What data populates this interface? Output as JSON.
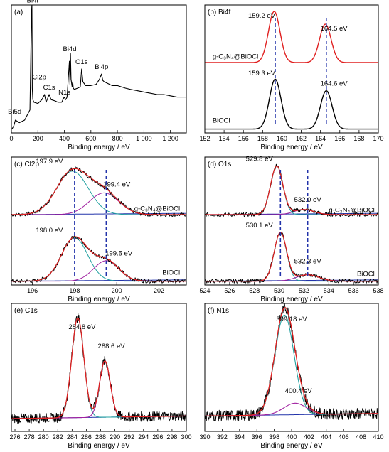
{
  "colors": {
    "raw": "#000000",
    "fit": "#e02020",
    "peak_green": "#20a0a0",
    "peak_purple": "#a020a0",
    "background": "#2233aa",
    "dash": "#2233aa"
  },
  "chart_data": [
    {
      "id": "a",
      "type": "line",
      "title": "(a)",
      "xlabel": "Binding energy / eV",
      "xlim": [
        0,
        1320
      ],
      "xticks": [
        0,
        200,
        400,
        600,
        800,
        1000,
        1200
      ],
      "xtick_labels": [
        "0",
        "200",
        "400",
        "600",
        "800",
        "1 000",
        "1 200"
      ],
      "ylim": [
        0,
        1
      ],
      "series": [
        {
          "role": "raw",
          "x": [
            5,
            20,
            30,
            60,
            100,
            140,
            152,
            155,
            158,
            162,
            170,
            200,
            230,
            250,
            262,
            270,
            285,
            300,
            330,
            350,
            380,
            398,
            410,
            420,
            438,
            442,
            446,
            450,
            458,
            463,
            467,
            475,
            500,
            520,
            530,
            540,
            560,
            600,
            640,
            665,
            680,
            690,
            700,
            760,
            800,
            860,
            900,
            950,
            1000,
            1050,
            1100,
            1150,
            1200,
            1250,
            1300,
            1320
          ],
          "y": [
            0.03,
            0.06,
            0.1,
            0.08,
            0.1,
            0.18,
            0.95,
            1.0,
            0.35,
            0.26,
            0.24,
            0.23,
            0.26,
            0.3,
            0.24,
            0.26,
            0.3,
            0.26,
            0.25,
            0.24,
            0.24,
            0.28,
            0.26,
            0.28,
            0.56,
            0.38,
            0.62,
            0.42,
            0.36,
            0.4,
            0.35,
            0.34,
            0.35,
            0.36,
            0.5,
            0.4,
            0.37,
            0.37,
            0.38,
            0.42,
            0.46,
            0.41,
            0.4,
            0.37,
            0.37,
            0.35,
            0.34,
            0.33,
            0.32,
            0.31,
            0.3,
            0.3,
            0.29,
            0.28,
            0.28,
            0.28
          ]
        }
      ],
      "annotations": [
        {
          "text": "Bi4f",
          "x": 160,
          "y": 1.02
        },
        {
          "text": "Bi5d",
          "x": 25,
          "y": 0.15
        },
        {
          "text": "Cl2p",
          "x": 210,
          "y": 0.42
        },
        {
          "text": "C1s",
          "x": 285,
          "y": 0.34
        },
        {
          "text": "N1s",
          "x": 400,
          "y": 0.3
        },
        {
          "text": "Bi4d",
          "x": 440,
          "y": 0.64
        },
        {
          "text": "O1s",
          "x": 530,
          "y": 0.54
        },
        {
          "text": "Bi4p",
          "x": 680,
          "y": 0.5
        }
      ]
    },
    {
      "id": "b",
      "type": "line",
      "title": "(b) Bi4f",
      "xlabel": "Binding energy / eV",
      "xlim": [
        152,
        170
      ],
      "xticks": [
        152,
        154,
        156,
        158,
        160,
        162,
        164,
        166,
        168,
        170
      ],
      "xtick_labels": [
        "152",
        "154",
        "156",
        "158",
        "160",
        "162",
        "164",
        "166",
        "168",
        "170"
      ],
      "ylim": [
        0,
        1
      ],
      "series": [
        {
          "name": "g-C3N4@BiOCl",
          "role": "fit",
          "baseline": 0.55,
          "peaks": [
            {
              "c": 159.2,
              "h": 0.4,
              "w": 0.6
            },
            {
              "c": 164.5,
              "h": 0.3,
              "w": 0.6
            }
          ]
        },
        {
          "name": "BiOCl",
          "role": "raw",
          "baseline": 0.03,
          "peaks": [
            {
              "c": 159.3,
              "h": 0.39,
              "w": 0.6
            },
            {
              "c": 164.6,
              "h": 0.3,
              "w": 0.6
            }
          ]
        }
      ],
      "labels": [
        {
          "text": "g-C₃N₄@BiOCl",
          "x": 152.8,
          "y": 0.58
        },
        {
          "text": "BiOCl",
          "x": 152.8,
          "y": 0.08
        }
      ],
      "annotations": [
        {
          "text": "159.2 eV",
          "x": 157.9,
          "y": 0.9
        },
        {
          "text": "164.5 eV",
          "x": 165.4,
          "y": 0.8
        },
        {
          "text": "159.3 eV",
          "x": 157.9,
          "y": 0.45
        },
        {
          "text": "164.6 eV",
          "x": 165.4,
          "y": 0.37
        }
      ],
      "dashes": [
        159.3,
        164.6
      ]
    },
    {
      "id": "c",
      "type": "line",
      "title": "(c) Cl2p",
      "xlabel": "Binding energy / eV",
      "xlim": [
        195,
        203.3
      ],
      "xticks": [
        196,
        198,
        200,
        202
      ],
      "xtick_labels": [
        "196",
        "198",
        "200",
        "202"
      ],
      "ylim": [
        0,
        1
      ],
      "series": [
        {
          "name": "g-C3N4@BiOCl",
          "baseline": 0.55,
          "fit_peaks": [
            {
              "c": 197.9,
              "h": 0.34,
              "w": 0.75,
              "color": "peak_green"
            },
            {
              "c": 199.4,
              "h": 0.17,
              "w": 0.7,
              "color": "peak_purple"
            }
          ]
        },
        {
          "name": "BiOCl",
          "baseline": 0.03,
          "fit_peaks": [
            {
              "c": 198.0,
              "h": 0.34,
              "w": 0.62,
              "color": "peak_green"
            },
            {
              "c": 199.5,
              "h": 0.16,
              "w": 0.6,
              "color": "peak_purple"
            }
          ]
        }
      ],
      "labels": [
        {
          "text": "g-C₃N₄@BiOCl",
          "x": 203.0,
          "y": 0.58
        },
        {
          "text": "BiOCl",
          "x": 203.0,
          "y": 0.08
        }
      ],
      "annotations": [
        {
          "text": "197.9 eV",
          "x": 196.8,
          "y": 0.95
        },
        {
          "text": "199.4 eV",
          "x": 200.0,
          "y": 0.77
        },
        {
          "text": "198.0 eV",
          "x": 196.8,
          "y": 0.41
        },
        {
          "text": "199.5 eV",
          "x": 200.1,
          "y": 0.23
        }
      ],
      "dashes": [
        198.0,
        199.5
      ]
    },
    {
      "id": "d",
      "type": "line",
      "title": "(d) O1s",
      "xlabel": "Binding energy / eV",
      "xlim": [
        524,
        538
      ],
      "xticks": [
        524,
        526,
        528,
        530,
        532,
        534,
        536,
        538
      ],
      "xtick_labels": [
        "524",
        "526",
        "528",
        "530",
        "532",
        "534",
        "536",
        "538"
      ],
      "ylim": [
        0,
        1
      ],
      "series": [
        {
          "name": "g-C3N4@BiOCl",
          "baseline": 0.55,
          "fit_peaks": [
            {
              "c": 529.8,
              "h": 0.38,
              "w": 0.5,
              "color": "peak_green"
            },
            {
              "c": 532.0,
              "h": 0.04,
              "w": 0.8,
              "color": "peak_purple"
            }
          ]
        },
        {
          "name": "BiOCl",
          "baseline": 0.03,
          "fit_peaks": [
            {
              "c": 530.1,
              "h": 0.38,
              "w": 0.5,
              "color": "peak_green"
            },
            {
              "c": 532.3,
              "h": 0.05,
              "w": 0.9,
              "color": "peak_purple"
            }
          ]
        }
      ],
      "labels": [
        {
          "text": "g-C₃N₄@BiOCl",
          "x": 537.7,
          "y": 0.57
        },
        {
          "text": "BiOCl",
          "x": 537.7,
          "y": 0.07
        }
      ],
      "annotations": [
        {
          "text": "529.8 eV",
          "x": 528.4,
          "y": 0.97
        },
        {
          "text": "532.0 eV",
          "x": 532.3,
          "y": 0.65
        },
        {
          "text": "530.1 eV",
          "x": 528.4,
          "y": 0.45
        },
        {
          "text": "532.3 eV",
          "x": 532.3,
          "y": 0.17
        }
      ],
      "dashes": [
        530.1,
        532.3
      ]
    },
    {
      "id": "e",
      "type": "line",
      "title": "(e) C1s",
      "xlabel": "Binding energy / eV",
      "xlim": [
        275.5,
        300
      ],
      "xticks": [
        276,
        278,
        280,
        282,
        284,
        286,
        288,
        290,
        292,
        294,
        296,
        298,
        300
      ],
      "xtick_labels": [
        "276",
        "278",
        "280",
        "282",
        "284",
        "286",
        "288",
        "290",
        "292",
        "294",
        "296",
        "298",
        "300"
      ],
      "ylim": [
        0,
        1
      ],
      "baseline": 0.1,
      "noise": 0.035,
      "fit_peaks": [
        {
          "c": 284.8,
          "h": 0.78,
          "w": 0.85,
          "color": "peak_green"
        },
        {
          "c": 288.6,
          "h": 0.44,
          "w": 0.75,
          "color": "peak_purple"
        }
      ],
      "annotations": [
        {
          "text": "284.8 eV",
          "x": 285.4,
          "y": 0.8
        },
        {
          "text": "288.6 eV",
          "x": 289.5,
          "y": 0.65
        }
      ]
    },
    {
      "id": "f",
      "type": "line",
      "title": "(f) N1s",
      "xlabel": "Binding energy / eV",
      "xlim": [
        390,
        410
      ],
      "xticks": [
        390,
        392,
        394,
        396,
        398,
        400,
        402,
        404,
        406,
        408,
        410
      ],
      "xtick_labels": [
        "390",
        "392",
        "394",
        "396",
        "398",
        "400",
        "402",
        "404",
        "406",
        "408",
        "410"
      ],
      "ylim": [
        0,
        1
      ],
      "baseline": 0.12,
      "noise": 0.04,
      "fit_peaks": [
        {
          "c": 399.18,
          "h": 0.78,
          "w": 1.1,
          "color": "peak_green"
        },
        {
          "c": 400.4,
          "h": 0.09,
          "w": 1.3,
          "color": "peak_purple"
        }
      ],
      "annotations": [
        {
          "text": "399.18 eV",
          "x": 400.0,
          "y": 0.86
        },
        {
          "text": "400.4 eV",
          "x": 400.8,
          "y": 0.3
        }
      ]
    }
  ]
}
